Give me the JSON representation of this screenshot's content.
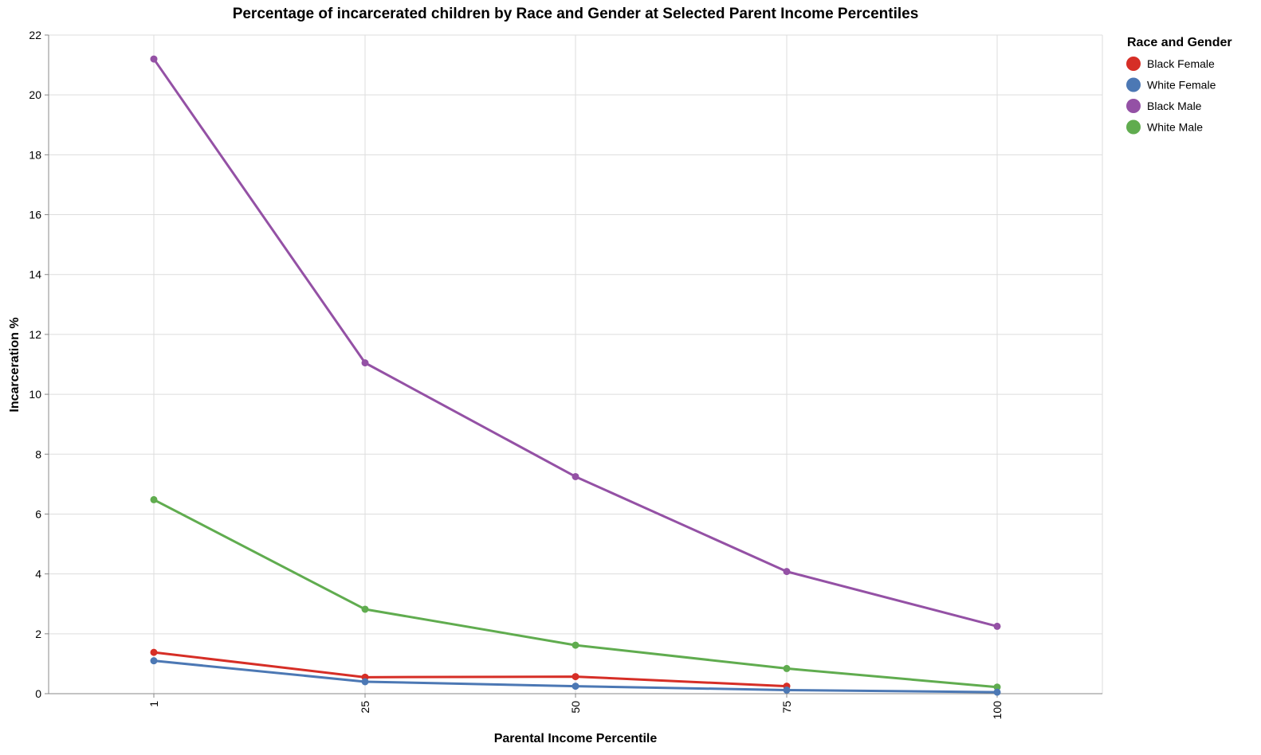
{
  "chart_data": {
    "type": "line",
    "title": "Percentage of incarcerated children by Race and Gender at Selected Parent Income Percentiles",
    "xlabel": "Parental Income Percentile",
    "ylabel": "Incarceration %",
    "x": [
      1,
      25,
      50,
      75,
      100
    ],
    "x_tick_labels": [
      "1",
      "25",
      "50",
      "75",
      "100"
    ],
    "ylim": [
      0,
      22
    ],
    "y_ticks": [
      0,
      2,
      4,
      6,
      8,
      10,
      12,
      14,
      16,
      18,
      20,
      22
    ],
    "grid": true,
    "legend": {
      "title": "Race and Gender",
      "placement": "right"
    },
    "series": [
      {
        "name": "Black Female",
        "color": "#d62e26",
        "values": [
          1.38,
          0.55,
          0.57,
          0.25,
          null
        ]
      },
      {
        "name": "White Female",
        "color": "#4c78b4",
        "values": [
          1.1,
          0.4,
          0.25,
          0.12,
          0.05
        ]
      },
      {
        "name": "Black Male",
        "color": "#9451a5",
        "values": [
          21.2,
          11.05,
          7.25,
          4.08,
          2.25
        ]
      },
      {
        "name": "White Male",
        "color": "#60ac4f",
        "values": [
          6.48,
          2.82,
          1.62,
          0.84,
          0.22
        ]
      }
    ]
  }
}
